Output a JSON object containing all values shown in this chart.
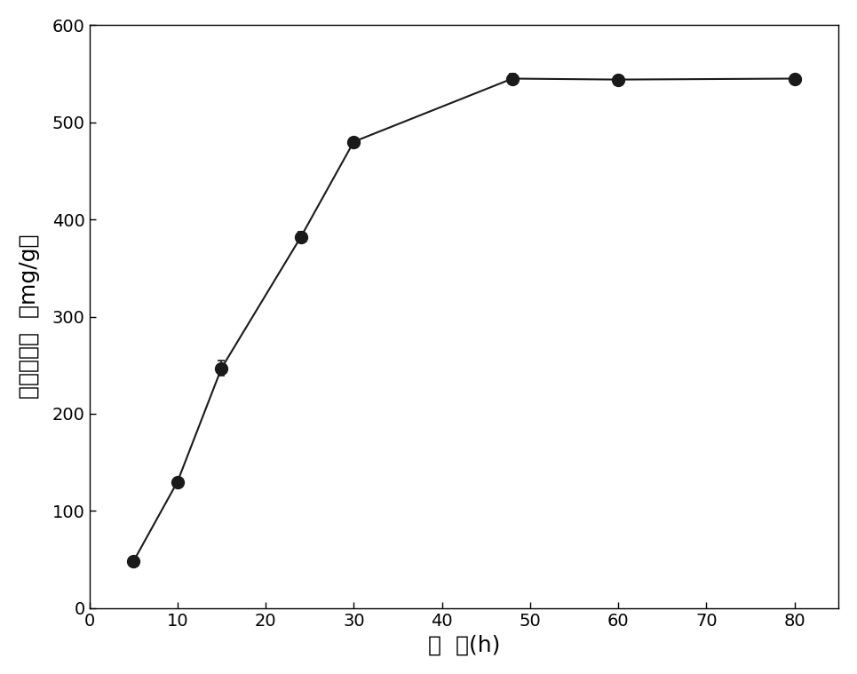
{
  "x": [
    5,
    10,
    15,
    24,
    30,
    48,
    60,
    80
  ],
  "y": [
    48,
    130,
    247,
    382,
    480,
    545,
    544,
    545
  ],
  "yerr": [
    3,
    4,
    8,
    5,
    4,
    5,
    4,
    4
  ],
  "xlim": [
    0,
    85
  ],
  "ylim": [
    0,
    600
  ],
  "xticks": [
    0,
    10,
    20,
    30,
    40,
    50,
    60,
    70,
    80
  ],
  "yticks": [
    0,
    100,
    200,
    300,
    400,
    500,
    600
  ],
  "xlabel": "时  间(h)",
  "ylabel": "还原糖得率  （mg/g）",
  "line_color": "#1a1a1a",
  "marker_color": "#1a1a1a",
  "marker_size": 10,
  "line_width": 1.5,
  "background_color": "#ffffff",
  "title_fontsize": 14,
  "label_fontsize": 18,
  "tick_fontsize": 14
}
